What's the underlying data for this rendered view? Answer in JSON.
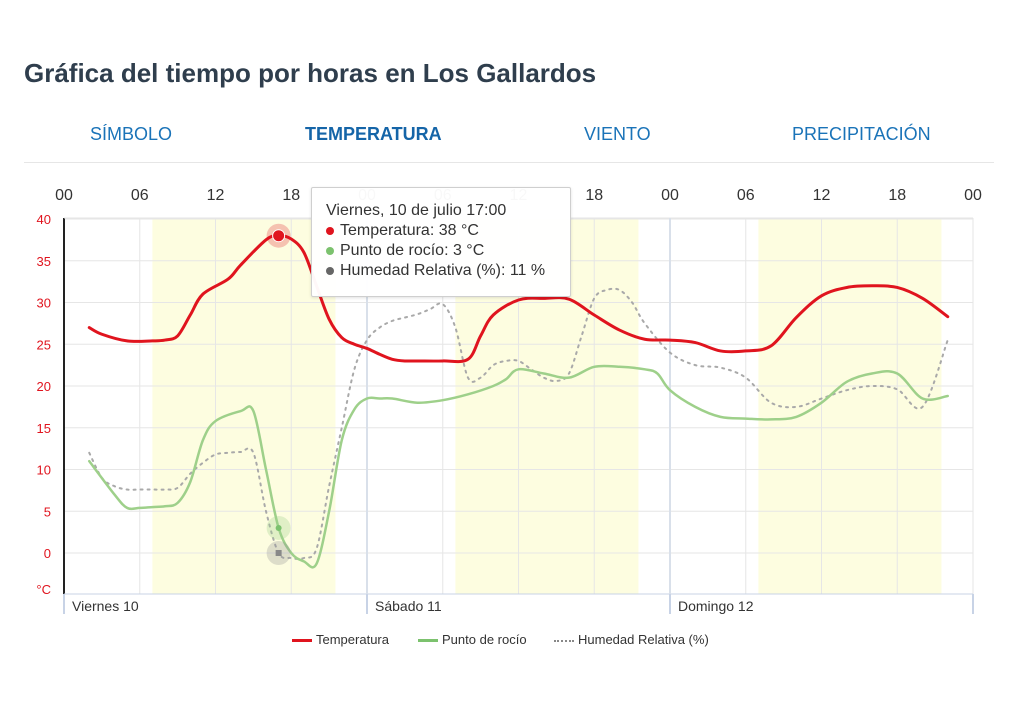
{
  "page": {
    "title": "Gráfica del tiempo por horas en Los Gallardos"
  },
  "tabs": [
    {
      "label": "SÍMBOLO",
      "active": false
    },
    {
      "label": "TEMPERATURA",
      "active": true
    },
    {
      "label": "VIENTO",
      "active": false
    },
    {
      "label": "PRECIPITACIÓN",
      "active": false
    }
  ],
  "tooltip": {
    "header": "Viernes, 10 de julio 17:00",
    "lines": [
      {
        "text": "Temperatura: 38 °C",
        "color": "#e0141e"
      },
      {
        "text": "Punto de rocío: 3 °C",
        "color": "#7cc26e"
      },
      {
        "text": "Humedad Relativa (%): 11 %",
        "color": "#666666"
      }
    ]
  },
  "colors": {
    "temperature": "#e0141e",
    "dewpoint": "#9ed08a",
    "humidity": "#a9a9a9",
    "daylight": "#fdfde0",
    "axis_red": "#e0141e"
  },
  "chart_data": {
    "type": "line",
    "title": "",
    "x_top_ticks": [
      "00",
      "06",
      "12",
      "18",
      "00",
      "06",
      "12",
      "18",
      "00",
      "06",
      "12",
      "18",
      "00"
    ],
    "x_day_labels": [
      "Viernes 10",
      "Sábado 11",
      "Domingo 12"
    ],
    "x_unit": "hours from Viernes 10 00:00",
    "xlim": [
      0,
      72
    ],
    "y_ticks": [
      "40",
      "35",
      "30",
      "25",
      "20",
      "15",
      "10",
      "5",
      "0"
    ],
    "y_unit": "°C",
    "ylim": [
      -4,
      40
    ],
    "grid": true,
    "legend_position": "bottom-center",
    "daylight_bands": [
      [
        7,
        21.5
      ],
      [
        31,
        45.5
      ],
      [
        55,
        69.5
      ]
    ],
    "highlight": {
      "x": 17,
      "series": [
        "Temperatura",
        "Punto de rocío",
        "Humedad Relativa (%)"
      ]
    },
    "series": [
      {
        "name": "Temperatura",
        "style": "solid",
        "x": [
          2,
          3,
          5,
          7,
          8,
          9,
          10,
          11,
          13,
          14,
          16,
          17,
          18,
          19,
          20,
          21,
          22,
          23,
          24,
          25,
          26,
          27,
          28,
          30,
          32,
          33,
          34,
          36,
          38,
          40,
          42,
          44,
          46,
          48,
          50,
          52,
          54,
          56,
          58,
          60,
          62,
          64,
          66,
          68,
          70
        ],
        "values": [
          27,
          26.2,
          25.4,
          25.4,
          25.5,
          26,
          28.5,
          31,
          32.8,
          34.5,
          37.5,
          38,
          37.6,
          36,
          32,
          28,
          25.8,
          25,
          24.5,
          23.8,
          23.2,
          23,
          23,
          23,
          23.2,
          26,
          28.5,
          30.3,
          30.5,
          30.4,
          28.5,
          26.7,
          25.6,
          25.5,
          25.2,
          24.2,
          24.2,
          24.8,
          28.2,
          30.8,
          31.8,
          32,
          31.8,
          30.5,
          28.3
        ]
      },
      {
        "name": "Punto de rocío",
        "style": "solid",
        "x": [
          2,
          4,
          5,
          6,
          7,
          8,
          9,
          10,
          11,
          12,
          14,
          15,
          16,
          17,
          18,
          19,
          20,
          21,
          22,
          23,
          24,
          25,
          26,
          28,
          30,
          32,
          34,
          35,
          36,
          38,
          40,
          42,
          44,
          46,
          47,
          48,
          50,
          52,
          54,
          56,
          58,
          60,
          62,
          64,
          66,
          68,
          70
        ],
        "values": [
          11,
          7,
          5.4,
          5.4,
          5.5,
          5.6,
          6,
          8.5,
          13.5,
          15.8,
          17,
          17,
          10,
          3,
          0,
          -1,
          -1.3,
          5,
          13.5,
          17.2,
          18.5,
          18.5,
          18.5,
          18,
          18.3,
          19,
          20,
          20.8,
          22,
          21.5,
          21,
          22.3,
          22.3,
          22,
          21.5,
          19.5,
          17.5,
          16.3,
          16.1,
          16,
          16.3,
          18,
          20.5,
          21.5,
          21.5,
          18.5,
          18.8
        ]
      },
      {
        "name": "Humedad Relativa (%)",
        "style": "dotted",
        "x": [
          2,
          3,
          4,
          5,
          6,
          7,
          8,
          9,
          10,
          11,
          12,
          13,
          14,
          15,
          16,
          17,
          18,
          19,
          20,
          21,
          22,
          23,
          24,
          25,
          26,
          27,
          28,
          29,
          30,
          31,
          32,
          33,
          34,
          35,
          36,
          37,
          38,
          39,
          40,
          41,
          42,
          43,
          44,
          45,
          46,
          48,
          50,
          52,
          54,
          56,
          58,
          60,
          62,
          64,
          66,
          68,
          70
        ],
        "values": [
          12,
          9,
          8,
          7.6,
          7.6,
          7.6,
          7.6,
          7.8,
          9.5,
          10.8,
          11.8,
          12,
          12.1,
          12,
          5,
          0,
          -0.6,
          -0.6,
          0.5,
          8,
          15,
          22,
          25.5,
          27,
          27.8,
          28.2,
          28.6,
          29.2,
          29.8,
          27,
          21,
          21,
          22.5,
          23,
          23,
          22,
          21,
          20.6,
          21.5,
          26,
          30.5,
          31.5,
          31.5,
          30,
          27.5,
          24,
          22.5,
          22.2,
          21,
          18,
          17.5,
          18.5,
          19.5,
          20,
          19.6,
          17.5,
          25.5
        ]
      }
    ]
  },
  "legend": [
    {
      "label": "Temperatura",
      "style": "solid",
      "color": "#e0141e"
    },
    {
      "label": "Punto de rocío",
      "style": "solid",
      "color": "#7cc26e"
    },
    {
      "label": "Humedad Relativa (%)",
      "style": "dotted",
      "color": "#888888"
    }
  ]
}
